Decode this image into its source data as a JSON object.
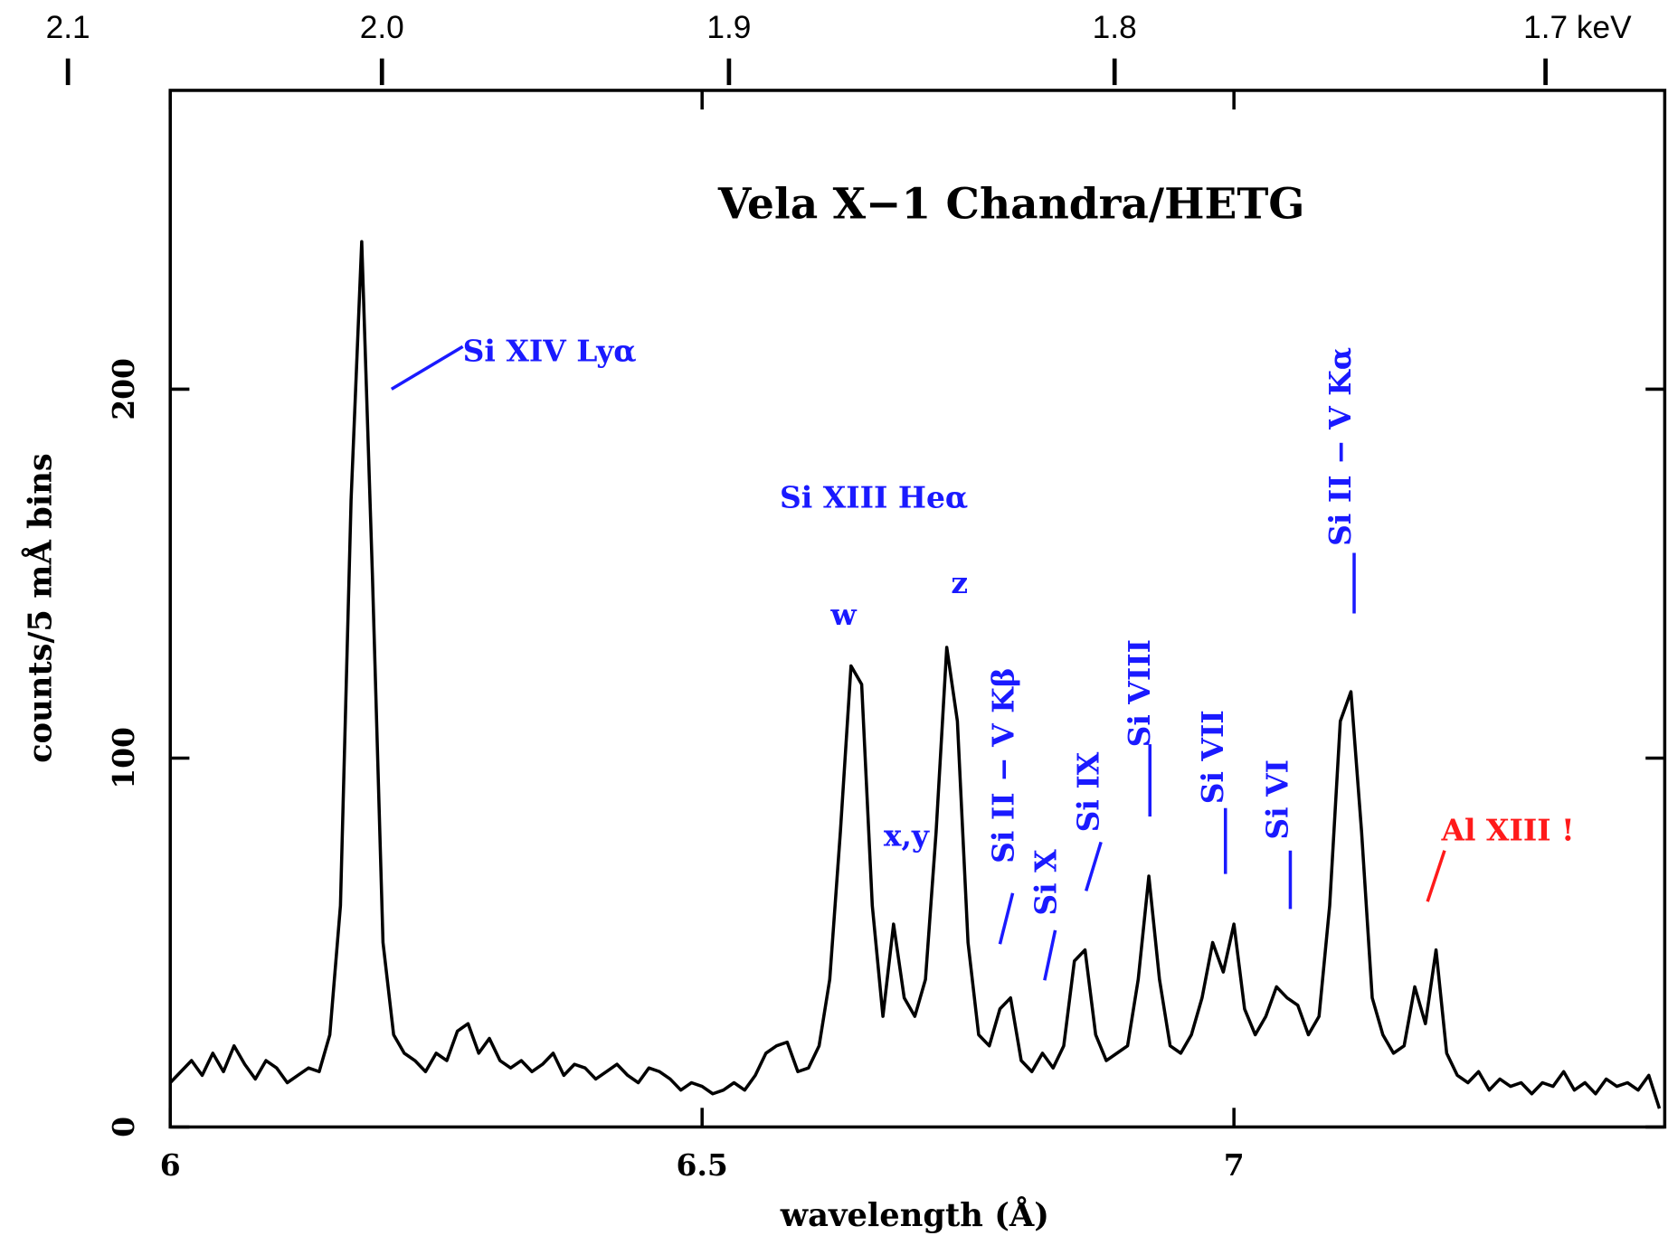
{
  "chart_data": {
    "type": "line",
    "title": "Vela X−1 Chandra/HETG",
    "xlabel": "wavelength (Å)",
    "ylabel": "counts/5 mÅ bins",
    "xlim": [
      6,
      7.405
    ],
    "ylim": [
      0,
      281
    ],
    "xticks": [
      6,
      6.5,
      7
    ],
    "yticks": [
      0,
      100,
      200
    ],
    "top_axis_ticks": [
      2.1,
      {
        "value": 2.0,
        "label": "2.0"
      },
      1.9,
      1.8,
      {
        "value": 1.7,
        "label": "1.7 keV"
      }
    ],
    "x": [
      6.0,
      6.01,
      6.02,
      6.03,
      6.04,
      6.05,
      6.06,
      6.07,
      6.08,
      6.09,
      6.1,
      6.11,
      6.12,
      6.13,
      6.14,
      6.15,
      6.16,
      6.17,
      6.18,
      6.19,
      6.2,
      6.21,
      6.22,
      6.23,
      6.24,
      6.25,
      6.26,
      6.27,
      6.28,
      6.29,
      6.3,
      6.31,
      6.32,
      6.33,
      6.34,
      6.35,
      6.36,
      6.37,
      6.38,
      6.39,
      6.4,
      6.41,
      6.42,
      6.43,
      6.44,
      6.45,
      6.46,
      6.47,
      6.48,
      6.49,
      6.5,
      6.51,
      6.52,
      6.53,
      6.54,
      6.55,
      6.56,
      6.57,
      6.58,
      6.59,
      6.6,
      6.61,
      6.62,
      6.63,
      6.64,
      6.65,
      6.66,
      6.67,
      6.68,
      6.69,
      6.7,
      6.71,
      6.72,
      6.73,
      6.74,
      6.75,
      6.76,
      6.77,
      6.78,
      6.79,
      6.8,
      6.81,
      6.82,
      6.83,
      6.84,
      6.85,
      6.86,
      6.87,
      6.88,
      6.89,
      6.9,
      6.91,
      6.92,
      6.93,
      6.94,
      6.95,
      6.96,
      6.97,
      6.98,
      6.99,
      7.0,
      7.01,
      7.02,
      7.03,
      7.04,
      7.05,
      7.06,
      7.07,
      7.08,
      7.09,
      7.1,
      7.11,
      7.12,
      7.13,
      7.14,
      7.15,
      7.16,
      7.17,
      7.18,
      7.19,
      7.2,
      7.21,
      7.22,
      7.23,
      7.24,
      7.25,
      7.26,
      7.27,
      7.28,
      7.29,
      7.3,
      7.31,
      7.32,
      7.33,
      7.34,
      7.35,
      7.36,
      7.37,
      7.38,
      7.39,
      7.4
    ],
    "series": [
      {
        "name": "Vela X-1",
        "color": "#000000",
        "values": [
          12,
          15,
          18,
          14,
          20,
          15,
          22,
          17,
          13,
          18,
          16,
          12,
          14,
          16,
          15,
          25,
          60,
          170,
          240,
          150,
          50,
          25,
          20,
          18,
          15,
          20,
          18,
          26,
          28,
          20,
          24,
          18,
          16,
          18,
          15,
          17,
          20,
          14,
          17,
          16,
          13,
          15,
          17,
          14,
          12,
          16,
          15,
          13,
          10,
          12,
          11,
          9,
          10,
          12,
          10,
          14,
          20,
          22,
          23,
          15,
          16,
          22,
          40,
          80,
          125,
          120,
          60,
          30,
          55,
          35,
          30,
          40,
          80,
          130,
          110,
          50,
          25,
          22,
          32,
          35,
          18,
          15,
          20,
          16,
          22,
          45,
          48,
          25,
          18,
          20,
          22,
          40,
          68,
          40,
          22,
          20,
          25,
          35,
          50,
          42,
          55,
          32,
          25,
          30,
          38,
          35,
          33,
          25,
          30,
          60,
          110,
          118,
          80,
          35,
          25,
          20,
          22,
          38,
          28,
          48,
          20,
          14,
          12,
          15,
          10,
          13,
          11,
          12,
          9,
          12,
          11,
          15,
          10,
          12,
          9,
          13,
          11,
          12,
          10,
          14,
          5
        ]
      }
    ],
    "annotations": [
      {
        "text": "Si XIV Lyα",
        "color": "#1a1aff"
      },
      {
        "text": "Si XIII Heα",
        "color": "#1a1aff"
      },
      {
        "text": "w",
        "color": "#1a1aff"
      },
      {
        "text": "z",
        "color": "#1a1aff"
      },
      {
        "text": "x,y",
        "color": "#1a1aff"
      },
      {
        "text": "Si II − V Kβ",
        "color": "#1a1aff"
      },
      {
        "text": "Si X",
        "color": "#1a1aff"
      },
      {
        "text": "Si IX",
        "color": "#1a1aff"
      },
      {
        "text": "Si VIII",
        "color": "#1a1aff"
      },
      {
        "text": "Si VII",
        "color": "#1a1aff"
      },
      {
        "text": "Si VI",
        "color": "#1a1aff"
      },
      {
        "text": "Si II − V Kα",
        "color": "#1a1aff"
      },
      {
        "text": "Al XIII !",
        "color": "#ff1a1a"
      }
    ]
  }
}
